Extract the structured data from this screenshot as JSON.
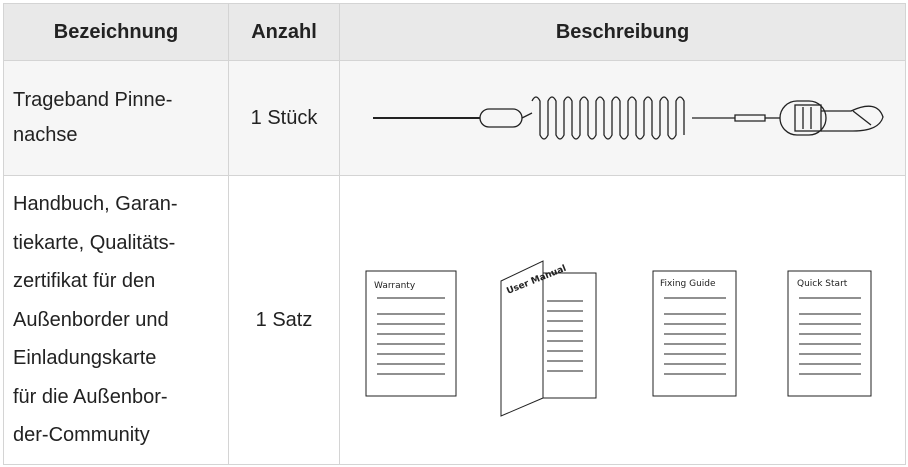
{
  "table": {
    "header": [
      "Bezeichnung",
      "Anzahl",
      "Beschreibung"
    ],
    "rows": [
      {
        "name_lines": [
          "Trageband Pinne-",
          "nachse"
        ],
        "quantity": "1 Stück"
      },
      {
        "name_lines": [
          "Handbuch, Garan-",
          "tiekarte, Qualitäts-",
          "zertifikat für den",
          "Außenborder und",
          "Einladungskarte",
          "für die Außenbor-",
          "der-Community"
        ],
        "quantity": "1 Satz",
        "image_labels": [
          "Warranty",
          "User Manual",
          "Fixing Guide",
          "Quick Start"
        ]
      }
    ]
  }
}
